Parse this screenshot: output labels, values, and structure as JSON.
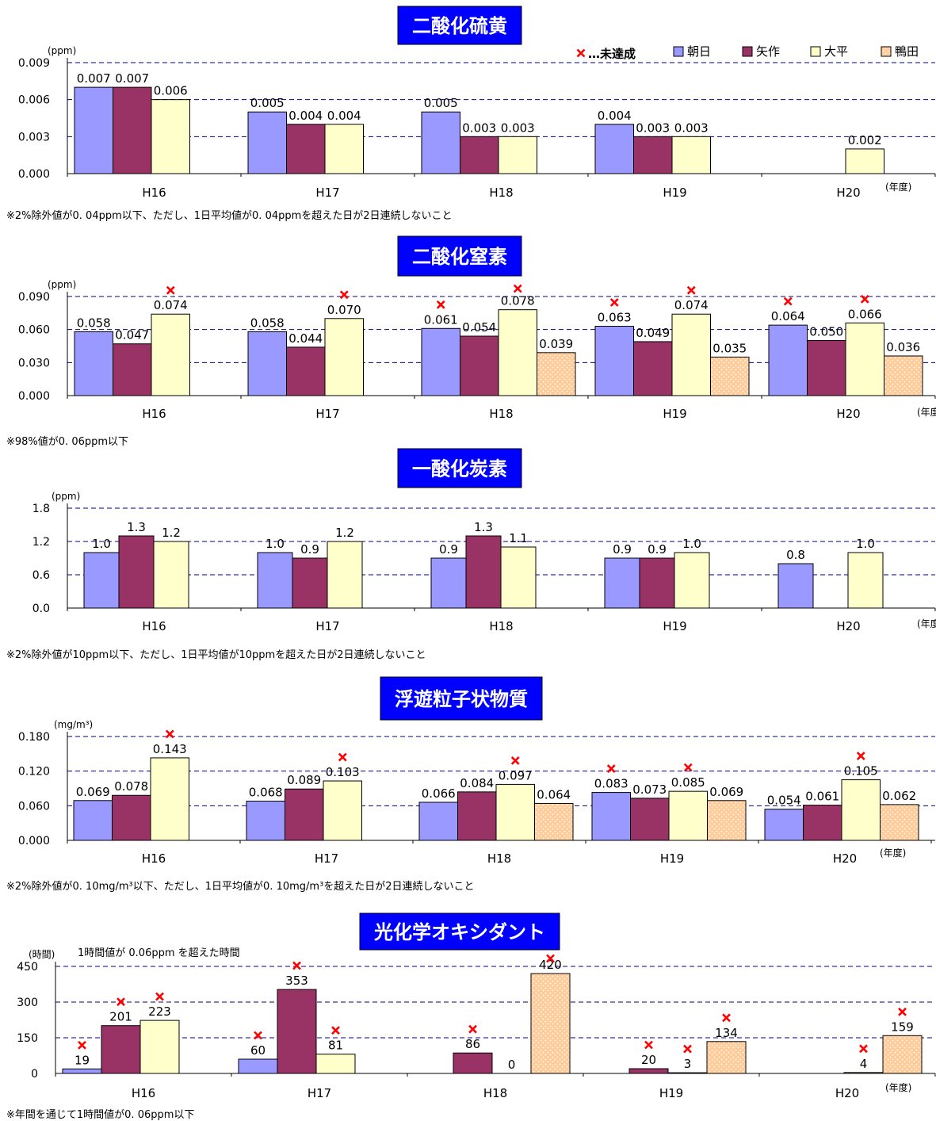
{
  "years": [
    "H16",
    "H17",
    "H18",
    "H19",
    "H20"
  ],
  "nendo": "(年度)",
  "legend": {
    "mark_symbol": "×",
    "mark_label": "…未達成",
    "items": [
      {
        "name": "朝日",
        "color": "#9999ff",
        "pattern": false
      },
      {
        "name": "矢作",
        "color": "#993366",
        "pattern": false
      },
      {
        "name": "大平",
        "color": "#ffffcc",
        "pattern": false
      },
      {
        "name": "鴨田",
        "color": "#ffcc99",
        "pattern": true
      }
    ]
  },
  "colors": {
    "title_bg": "#0000ff",
    "title_fg": "#ffffff",
    "grid": "#000080",
    "mark": "#ff0000",
    "dots": "#ffffff"
  },
  "chart_data": [
    {
      "type": "bar",
      "title": "二酸化硫黄",
      "unit": "(ppm)",
      "categories": [
        "H16",
        "H17",
        "H18",
        "H19",
        "H20"
      ],
      "ylim": [
        0,
        0.009
      ],
      "yticks": [
        "0.000",
        "0.003",
        "0.006",
        "0.009"
      ],
      "decimals": 3,
      "grid": "dashed",
      "series": [
        {
          "name": "朝日",
          "values": [
            0.007,
            0.005,
            0.005,
            0.004,
            null
          ]
        },
        {
          "name": "矢作",
          "values": [
            0.007,
            0.004,
            0.003,
            0.003,
            null
          ]
        },
        {
          "name": "大平",
          "values": [
            0.006,
            0.004,
            0.003,
            0.003,
            0.002
          ]
        },
        {
          "name": "鴨田",
          "values": [
            null,
            null,
            null,
            null,
            null
          ]
        }
      ],
      "marks": [],
      "note": "※2%除外値が0. 04ppm以下、ただし、1日平均値が0. 04ppmを超えた日が2日連続しないこと"
    },
    {
      "type": "bar",
      "title": "二酸化窒素",
      "unit": "(ppm)",
      "categories": [
        "H16",
        "H17",
        "H18",
        "H19",
        "H20"
      ],
      "ylim": [
        0,
        0.09
      ],
      "yticks": [
        "0.000",
        "0.030",
        "0.060",
        "0.090"
      ],
      "decimals": 3,
      "grid": "dashed",
      "series": [
        {
          "name": "朝日",
          "values": [
            0.058,
            0.058,
            0.061,
            0.063,
            0.064
          ]
        },
        {
          "name": "矢作",
          "values": [
            0.047,
            0.044,
            0.054,
            0.049,
            0.05
          ]
        },
        {
          "name": "大平",
          "values": [
            0.074,
            0.07,
            0.078,
            0.074,
            0.066
          ]
        },
        {
          "name": "鴨田",
          "values": [
            null,
            null,
            0.039,
            0.035,
            0.036
          ]
        }
      ],
      "marks": [
        [
          0,
          2
        ],
        [
          1,
          2
        ],
        [
          2,
          0
        ],
        [
          2,
          2
        ],
        [
          3,
          0
        ],
        [
          3,
          2
        ],
        [
          4,
          0
        ],
        [
          4,
          2
        ]
      ],
      "note": "※98%値が0. 06ppm以下"
    },
    {
      "type": "bar",
      "title": "一酸化炭素",
      "unit": "(ppm)",
      "categories": [
        "H16",
        "H17",
        "H18",
        "H19",
        "H20"
      ],
      "ylim": [
        0,
        1.8
      ],
      "yticks": [
        "0.0",
        "0.6",
        "1.2",
        "1.8"
      ],
      "decimals": 1,
      "grid": "dashed",
      "series": [
        {
          "name": "朝日",
          "values": [
            1.0,
            1.0,
            0.9,
            0.9,
            0.8
          ]
        },
        {
          "name": "矢作",
          "values": [
            1.3,
            0.9,
            1.3,
            0.9,
            null
          ]
        },
        {
          "name": "大平",
          "values": [
            1.2,
            1.2,
            1.1,
            1.0,
            1.0
          ]
        }
      ],
      "marks": [],
      "note": "※2%除外値が10ppm以下、ただし、1日平均値が10ppmを超えた日が2日連続しないこと"
    },
    {
      "type": "bar",
      "title": "浮遊粒子状物質",
      "unit": "(mg/m³)",
      "categories": [
        "H16",
        "H17",
        "H18",
        "H19",
        "H20"
      ],
      "ylim": [
        0,
        0.18
      ],
      "yticks": [
        "0.000",
        "0.060",
        "0.120",
        "0.180"
      ],
      "decimals": 3,
      "grid": "dashed",
      "series": [
        {
          "name": "朝日",
          "values": [
            0.069,
            0.068,
            0.066,
            0.083,
            0.054
          ]
        },
        {
          "name": "矢作",
          "values": [
            0.078,
            0.089,
            0.084,
            0.073,
            0.061
          ]
        },
        {
          "name": "大平",
          "values": [
            0.143,
            0.103,
            0.097,
            0.085,
            0.105
          ]
        },
        {
          "name": "鴨田",
          "values": [
            null,
            null,
            0.064,
            0.069,
            0.062
          ]
        }
      ],
      "marks": [
        [
          0,
          2
        ],
        [
          1,
          2
        ],
        [
          2,
          2
        ],
        [
          3,
          0
        ],
        [
          3,
          2
        ],
        [
          4,
          2
        ]
      ],
      "note": "※2%除外値が0. 10mg/m³以下、ただし、1日平均値が0. 10mg/m³を超えた日が2日連続しないこと"
    },
    {
      "type": "bar",
      "title": "光化学オキシダント",
      "unit": "(時間)",
      "subtitle": "1時間値が 0.06ppm を超えた時間",
      "categories": [
        "H16",
        "H17",
        "H18",
        "H19",
        "H20"
      ],
      "ylim": [
        0,
        450
      ],
      "yticks": [
        "0",
        "150",
        "300",
        "450"
      ],
      "decimals": 0,
      "grid": "dashed",
      "series": [
        {
          "name": "朝日",
          "values": [
            19,
            60,
            null,
            null,
            null
          ]
        },
        {
          "name": "矢作",
          "values": [
            201,
            353,
            86,
            20,
            null
          ]
        },
        {
          "name": "大平",
          "values": [
            223,
            81,
            0,
            3,
            4
          ]
        },
        {
          "name": "鴨田",
          "values": [
            null,
            null,
            420,
            134,
            159
          ]
        }
      ],
      "marks": [
        [
          0,
          0
        ],
        [
          0,
          1
        ],
        [
          0,
          2
        ],
        [
          1,
          0
        ],
        [
          1,
          1
        ],
        [
          1,
          2
        ],
        [
          2,
          1
        ],
        [
          2,
          3
        ],
        [
          3,
          1
        ],
        [
          3,
          2
        ],
        [
          3,
          3
        ],
        [
          4,
          2
        ],
        [
          4,
          3
        ]
      ],
      "note": "※年間を通じて1時間値が0. 06ppm以下"
    }
  ]
}
